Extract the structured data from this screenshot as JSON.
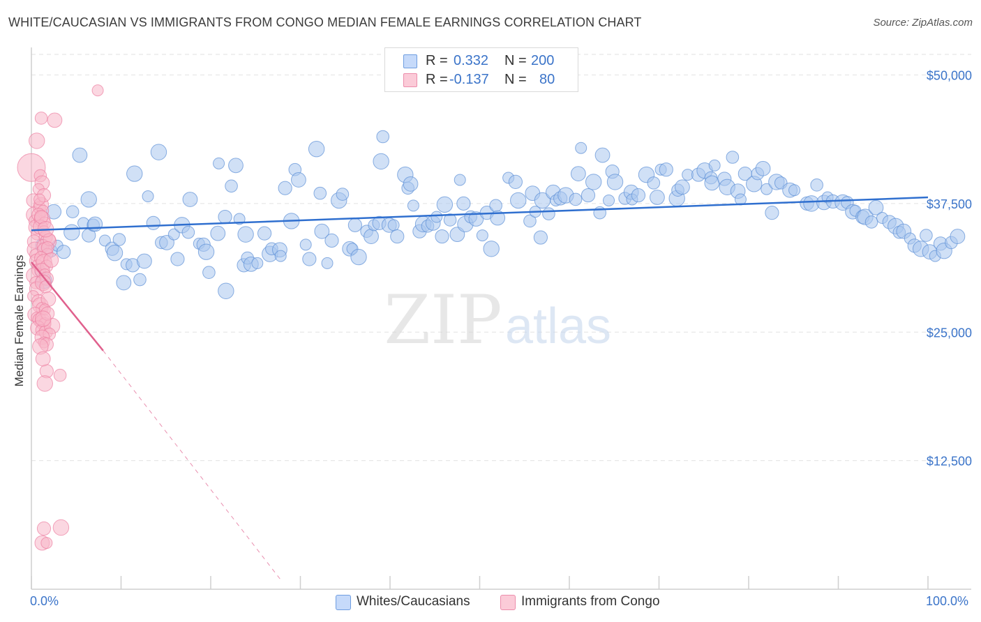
{
  "title": "WHITE/CAUCASIAN VS IMMIGRANTS FROM CONGO MEDIAN FEMALE EARNINGS CORRELATION CHART",
  "source": "Source: ZipAtlas.com",
  "watermark": {
    "zip": "ZIP",
    "atlas": "atlas"
  },
  "legend": {
    "rows": [
      {
        "r_label": "R =",
        "r_value": "0.332",
        "n_label": "N =",
        "n_value": "200",
        "color": "#a9c7ef"
      },
      {
        "r_label": "R =",
        "r_value": "-0.137",
        "n_label": "N =",
        "n_value": "80",
        "color": "#f7b6c8"
      }
    ]
  },
  "bottom_legend": [
    {
      "label": "Whites/Caucasians",
      "color": "#a9c7ef"
    },
    {
      "label": "Immigrants from Congo",
      "color": "#f7b6c8"
    }
  ],
  "chart_data": {
    "type": "scatter",
    "xlabel": "",
    "ylabel": "Median Female Earnings",
    "xlim": [
      0,
      100
    ],
    "ylim": [
      0,
      52000
    ],
    "x_tick_labels": [
      "0.0%",
      "100.0%"
    ],
    "y_ticks": [
      12500,
      25000,
      37500,
      50000
    ],
    "y_tick_labels": [
      "$12,500",
      "$25,000",
      "$37,500",
      "$50,000"
    ],
    "grid": true,
    "colors": {
      "blue": "#a9c7ef",
      "blue_edge": "#5b8fd6",
      "blue_line": "#2f6fcf",
      "pink": "#f7b6c8",
      "pink_edge": "#ec7fa1",
      "pink_line": "#e0608d",
      "tick_text": "#3b74c9"
    },
    "series": [
      {
        "name": "Whites/Caucasians",
        "trend": {
          "x": [
            0,
            100
          ],
          "y": [
            34900,
            38100
          ],
          "dashed": false
        },
        "points": [
          [
            1,
            30900
          ],
          [
            1.2,
            33400
          ],
          [
            1.4,
            30000
          ],
          [
            2.2,
            32900
          ],
          [
            2.5,
            36700
          ],
          [
            2.9,
            33400
          ],
          [
            3.6,
            32800
          ],
          [
            4.5,
            34700
          ],
          [
            4.6,
            36700
          ],
          [
            5.4,
            42200
          ],
          [
            5.8,
            35600
          ],
          [
            6.4,
            34400
          ],
          [
            6.4,
            37900
          ],
          [
            6.9,
            35400
          ],
          [
            7.1,
            35500
          ],
          [
            8.2,
            33900
          ],
          [
            9.0,
            33100
          ],
          [
            9.3,
            32700
          ],
          [
            9.8,
            34000
          ],
          [
            10.3,
            29800
          ],
          [
            10.6,
            31600
          ],
          [
            11.3,
            31500
          ],
          [
            11.5,
            40400
          ],
          [
            12.1,
            30100
          ],
          [
            12.6,
            31900
          ],
          [
            13.0,
            38200
          ],
          [
            13.6,
            35600
          ],
          [
            14.2,
            42500
          ],
          [
            14.5,
            33700
          ],
          [
            15.1,
            33700
          ],
          [
            15.9,
            34500
          ],
          [
            16.3,
            32100
          ],
          [
            16.8,
            35400
          ],
          [
            17.5,
            34700
          ],
          [
            17.7,
            37900
          ],
          [
            18.7,
            33600
          ],
          [
            19.2,
            33500
          ],
          [
            19.5,
            32800
          ],
          [
            19.8,
            30800
          ],
          [
            20.8,
            34600
          ],
          [
            20.9,
            41400
          ],
          [
            21.6,
            36200
          ],
          [
            21.7,
            29000
          ],
          [
            22.3,
            39200
          ],
          [
            22.8,
            41200
          ],
          [
            23.2,
            36000
          ],
          [
            23.7,
            31500
          ],
          [
            23.9,
            34500
          ],
          [
            24.1,
            32200
          ],
          [
            24.5,
            31600
          ],
          [
            25.2,
            31700
          ],
          [
            26.0,
            34600
          ],
          [
            26.6,
            32600
          ],
          [
            26.8,
            33100
          ],
          [
            27.7,
            33000
          ],
          [
            27.8,
            32400
          ],
          [
            28.3,
            39000
          ],
          [
            29.0,
            35800
          ],
          [
            29.4,
            40800
          ],
          [
            29.8,
            39800
          ],
          [
            30.6,
            33500
          ],
          [
            31.0,
            32100
          ],
          [
            31.8,
            42800
          ],
          [
            32.2,
            38500
          ],
          [
            32.4,
            34800
          ],
          [
            33.0,
            31700
          ],
          [
            33.5,
            33900
          ],
          [
            34.3,
            37800
          ],
          [
            34.7,
            38400
          ],
          [
            35.5,
            33100
          ],
          [
            35.8,
            33100
          ],
          [
            36.1,
            35400
          ],
          [
            36.5,
            32300
          ],
          [
            37.4,
            34800
          ],
          [
            37.9,
            34300
          ],
          [
            38.2,
            35400
          ],
          [
            38.8,
            35600
          ],
          [
            39.0,
            41600
          ],
          [
            39.2,
            44000
          ],
          [
            39.9,
            35400
          ],
          [
            40.4,
            35400
          ],
          [
            40.8,
            34300
          ],
          [
            41.7,
            40300
          ],
          [
            42.0,
            39000
          ],
          [
            42.3,
            39400
          ],
          [
            42.6,
            37300
          ],
          [
            43.3,
            34800
          ],
          [
            43.7,
            35500
          ],
          [
            44.2,
            35300
          ],
          [
            44.8,
            35600
          ],
          [
            45.2,
            36200
          ],
          [
            45.8,
            34300
          ],
          [
            46.1,
            37400
          ],
          [
            46.7,
            35900
          ],
          [
            47.5,
            34500
          ],
          [
            47.8,
            39800
          ],
          [
            48.2,
            37500
          ],
          [
            48.4,
            35500
          ],
          [
            49.0,
            36200
          ],
          [
            49.6,
            36000
          ],
          [
            50.3,
            34400
          ],
          [
            50.8,
            36600
          ],
          [
            51.3,
            33100
          ],
          [
            51.8,
            37300
          ],
          [
            52.0,
            36100
          ],
          [
            53.2,
            40000
          ],
          [
            54.0,
            39600
          ],
          [
            54.3,
            37800
          ],
          [
            55.6,
            35800
          ],
          [
            55.9,
            38500
          ],
          [
            56.2,
            36700
          ],
          [
            56.8,
            34200
          ],
          [
            57.0,
            37800
          ],
          [
            57.7,
            36500
          ],
          [
            58.2,
            38600
          ],
          [
            58.5,
            37800
          ],
          [
            59.0,
            38000
          ],
          [
            59.6,
            38300
          ],
          [
            60.7,
            37900
          ],
          [
            61.0,
            40400
          ],
          [
            61.3,
            42900
          ],
          [
            62.1,
            38300
          ],
          [
            62.7,
            39600
          ],
          [
            63.4,
            36600
          ],
          [
            63.7,
            42200
          ],
          [
            64.4,
            37800
          ],
          [
            64.8,
            40600
          ],
          [
            65.1,
            39600
          ],
          [
            66.2,
            38000
          ],
          [
            66.9,
            38600
          ],
          [
            67.0,
            37900
          ],
          [
            67.7,
            38300
          ],
          [
            68.6,
            40300
          ],
          [
            69.4,
            39500
          ],
          [
            69.8,
            38100
          ],
          [
            70.2,
            40800
          ],
          [
            70.8,
            40800
          ],
          [
            72.0,
            38000
          ],
          [
            72.1,
            38800
          ],
          [
            72.6,
            39100
          ],
          [
            73.2,
            40300
          ],
          [
            74.4,
            40300
          ],
          [
            75.1,
            40700
          ],
          [
            75.8,
            40000
          ],
          [
            75.9,
            39500
          ],
          [
            76.2,
            41200
          ],
          [
            77.3,
            39900
          ],
          [
            77.6,
            39100
          ],
          [
            78.2,
            42000
          ],
          [
            78.8,
            38700
          ],
          [
            79.1,
            37900
          ],
          [
            79.6,
            40400
          ],
          [
            80.6,
            39400
          ],
          [
            81.0,
            40400
          ],
          [
            81.6,
            40900
          ],
          [
            82.0,
            38900
          ],
          [
            82.6,
            36600
          ],
          [
            83.1,
            39600
          ],
          [
            83.6,
            39500
          ],
          [
            84.6,
            38800
          ],
          [
            85.1,
            38800
          ],
          [
            86.5,
            37500
          ],
          [
            87.0,
            37500
          ],
          [
            87.6,
            39300
          ],
          [
            88.4,
            37600
          ],
          [
            88.8,
            38100
          ],
          [
            89.4,
            37700
          ],
          [
            90.5,
            37600
          ],
          [
            91.0,
            37600
          ],
          [
            91.6,
            36700
          ],
          [
            91.9,
            36800
          ],
          [
            92.7,
            36200
          ],
          [
            93.0,
            36200
          ],
          [
            93.7,
            35700
          ],
          [
            94.2,
            37100
          ],
          [
            94.9,
            36100
          ],
          [
            95.7,
            35700
          ],
          [
            96.4,
            35300
          ],
          [
            96.8,
            34700
          ],
          [
            97.3,
            34800
          ],
          [
            98.0,
            34100
          ],
          [
            98.5,
            33400
          ],
          [
            99.2,
            33100
          ],
          [
            99.8,
            34400
          ],
          [
            100.2,
            32800
          ],
          [
            100.8,
            32400
          ],
          [
            101.4,
            33600
          ],
          [
            101.8,
            32900
          ],
          [
            102.6,
            33700
          ],
          [
            103.3,
            34300
          ]
        ]
      },
      {
        "name": "Immigrants from Congo",
        "trend": {
          "x": [
            0,
            8
          ],
          "y": [
            31800,
            23200
          ],
          "dashed_extension": {
            "x": [
              8,
              28
            ],
            "y": [
              23200,
              700
            ]
          }
        },
        "points": [
          [
            0,
            41000
          ],
          [
            0.2,
            37800
          ],
          [
            0.3,
            36400
          ],
          [
            0.4,
            35800
          ],
          [
            0.5,
            35200
          ],
          [
            0.6,
            34500
          ],
          [
            0.3,
            33800
          ],
          [
            0.4,
            33000
          ],
          [
            0.5,
            32500
          ],
          [
            0.6,
            31900
          ],
          [
            0.7,
            31500
          ],
          [
            0.8,
            31000
          ],
          [
            0.3,
            30500
          ],
          [
            0.5,
            29800
          ],
          [
            0.6,
            29200
          ],
          [
            0.2,
            28500
          ],
          [
            0.8,
            28000
          ],
          [
            1.0,
            27600
          ],
          [
            1.2,
            27300
          ],
          [
            0.4,
            26700
          ],
          [
            0.6,
            26400
          ],
          [
            0.9,
            26200
          ],
          [
            1.3,
            26000
          ],
          [
            1.5,
            25800
          ],
          [
            0.7,
            25400
          ],
          [
            1.1,
            25200
          ],
          [
            1.6,
            25000
          ],
          [
            2.3,
            25600
          ],
          [
            2.0,
            24800
          ],
          [
            1.2,
            24500
          ],
          [
            1.4,
            24000
          ],
          [
            1.7,
            23800
          ],
          [
            1.0,
            23600
          ],
          [
            0.9,
            37100
          ],
          [
            1.1,
            37400
          ],
          [
            1.3,
            36800
          ],
          [
            0.8,
            36400
          ],
          [
            1.2,
            36000
          ],
          [
            1.5,
            35600
          ],
          [
            1.0,
            35200
          ],
          [
            1.4,
            34800
          ],
          [
            1.6,
            34200
          ],
          [
            1.9,
            33800
          ],
          [
            1.3,
            33400
          ],
          [
            1.5,
            33000
          ],
          [
            1.8,
            32600
          ],
          [
            1.1,
            32200
          ],
          [
            1.4,
            31800
          ],
          [
            1.7,
            31400
          ],
          [
            1.2,
            31000
          ],
          [
            1.5,
            30600
          ],
          [
            1.7,
            30200
          ],
          [
            1.3,
            29800
          ],
          [
            1.6,
            29400
          ],
          [
            1.9,
            28200
          ],
          [
            1.5,
            27200
          ],
          [
            1.8,
            26800
          ],
          [
            1.3,
            26300
          ],
          [
            1.0,
            40200
          ],
          [
            1.2,
            39500
          ],
          [
            0.8,
            38900
          ],
          [
            1.4,
            38300
          ],
          [
            0.6,
            43600
          ],
          [
            1.1,
            45800
          ],
          [
            2.6,
            45600
          ],
          [
            7.4,
            48500
          ],
          [
            1.7,
            21200
          ],
          [
            1.5,
            20000
          ],
          [
            3.2,
            20800
          ],
          [
            1.2,
            4500
          ],
          [
            1.7,
            4500
          ],
          [
            1.4,
            5900
          ],
          [
            3.3,
            6000
          ],
          [
            2.0,
            34000
          ],
          [
            1.3,
            22400
          ],
          [
            0.9,
            37900
          ],
          [
            1.1,
            36200
          ],
          [
            1.6,
            35000
          ],
          [
            1.8,
            33200
          ],
          [
            2.2,
            32000
          ]
        ]
      }
    ]
  }
}
